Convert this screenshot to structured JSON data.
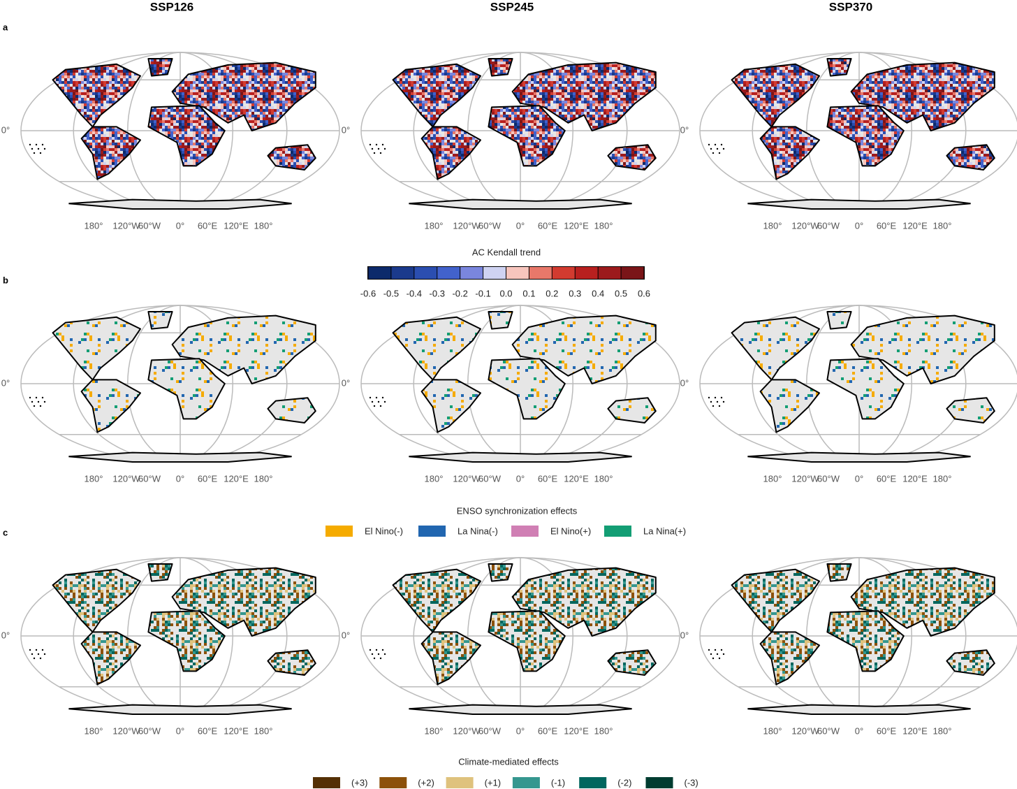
{
  "columns": [
    "SSP126",
    "SSP245",
    "SSP370"
  ],
  "panels": [
    "a",
    "b",
    "c"
  ],
  "lon_labels": [
    "180°",
    "120°W",
    "60°W",
    "0°",
    "60°E",
    "120°E",
    "180°"
  ],
  "lat_label": "0°",
  "legends": {
    "kendall": {
      "title": "AC Kendall trend",
      "colors": [
        "#0d2a6b",
        "#1b3a8c",
        "#2b4eb0",
        "#4262cc",
        "#7a86de",
        "#cfd3f2",
        "#f7c5bd",
        "#e8786a",
        "#d23b30",
        "#b8201f",
        "#9c1a1c",
        "#7a1518"
      ],
      "ticks": [
        -0.6,
        -0.5,
        -0.4,
        -0.3,
        -0.2,
        -0.1,
        {
          "value": 0,
          "label": "0.0"
        },
        0.1,
        0.2,
        0.3,
        0.4,
        0.5,
        0.6
      ]
    },
    "enso": {
      "title": "ENSO synchronization effects",
      "items": [
        {
          "name": "El Nino(-)",
          "color": "#f5ab00"
        },
        {
          "name": "La Nina(-)",
          "color": "#2166b0"
        },
        {
          "name": "El Nino(+)",
          "color": "#d07fb4"
        },
        {
          "name": "La Nina(+)",
          "color": "#139e74"
        }
      ]
    },
    "climate": {
      "title": "Climate-mediated effects",
      "items": [
        {
          "name": "(+3)",
          "color": "#543005"
        },
        {
          "name": "(+2)",
          "color": "#8c510a"
        },
        {
          "name": "(+1)",
          "color": "#dfc27d"
        },
        {
          "name": "(-1)",
          "color": "#35978f"
        },
        {
          "name": "(-2)",
          "color": "#01665e"
        },
        {
          "name": "(-3)",
          "color": "#003c30"
        }
      ]
    }
  }
}
